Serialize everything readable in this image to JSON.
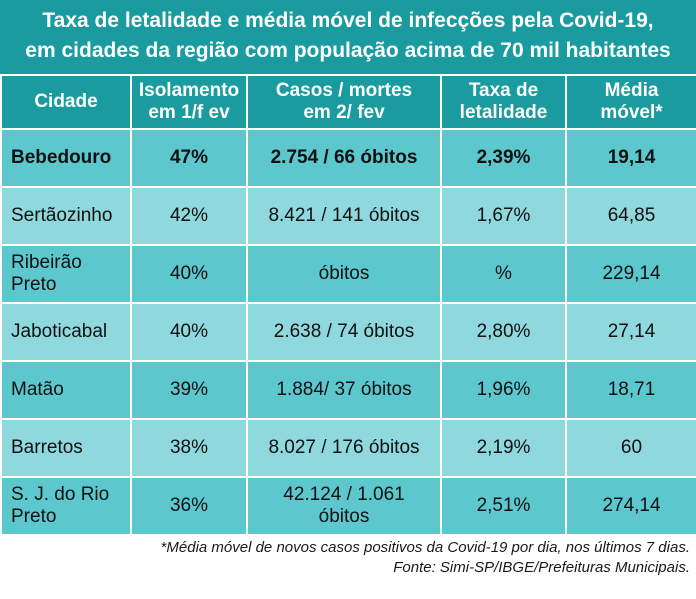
{
  "title": {
    "line1": "Taxa de letalidade e média móvel de infecções pela Covid-19,",
    "line2": "em cidades da região com população acima de 70 mil habitantes"
  },
  "columns": [
    [
      "Cidade"
    ],
    [
      "Isolamento",
      "em 1/f ev"
    ],
    [
      "Casos / mortes",
      "em 2/ fev"
    ],
    [
      "Taxa de",
      "letalidade"
    ],
    [
      "Média",
      "móvel*"
    ]
  ],
  "rows": [
    {
      "city": [
        "Bebedouro"
      ],
      "isolamento": "47%",
      "casos": [
        "2.754 / 66 óbitos"
      ],
      "taxa": "2,39%",
      "media": "19,14"
    },
    {
      "city": [
        "Sertãozinho"
      ],
      "isolamento": "42%",
      "casos": [
        "8.421 / 141 óbitos"
      ],
      "taxa": "1,67%",
      "media": "64,85"
    },
    {
      "city": [
        "Ribeirão",
        "Preto"
      ],
      "isolamento": "40%",
      "casos": [
        "óbitos"
      ],
      "taxa": "%",
      "media": "229,14"
    },
    {
      "city": [
        "Jaboticabal"
      ],
      "isolamento": "40%",
      "casos": [
        "2.638 / 74 óbitos"
      ],
      "taxa": "2,80%",
      "media": "27,14"
    },
    {
      "city": [
        "Matão"
      ],
      "isolamento": "39%",
      "casos": [
        "1.884/ 37 óbitos"
      ],
      "taxa": "1,96%",
      "media": "18,71"
    },
    {
      "city": [
        "Barretos"
      ],
      "isolamento": "38%",
      "casos": [
        "8.027 / 176 óbitos"
      ],
      "taxa": "2,19%",
      "media": "60"
    },
    {
      "city": [
        "S. J. do Rio",
        "Preto"
      ],
      "isolamento": "36%",
      "casos": [
        "42.124 / 1.061",
        "óbitos"
      ],
      "taxa": "2,51%",
      "media": "274,14"
    }
  ],
  "footnote": {
    "line1": "*Média móvel de novos casos positivos da Covid-19 por dia, nos últimos 7 dias.",
    "line2": "Fonte: Simi-SP/IBGE/Prefeituras Municipais."
  },
  "colors": {
    "header": "#1a9ba0",
    "row_dark": "#5cc7cd",
    "row_light": "#8ed8de"
  }
}
